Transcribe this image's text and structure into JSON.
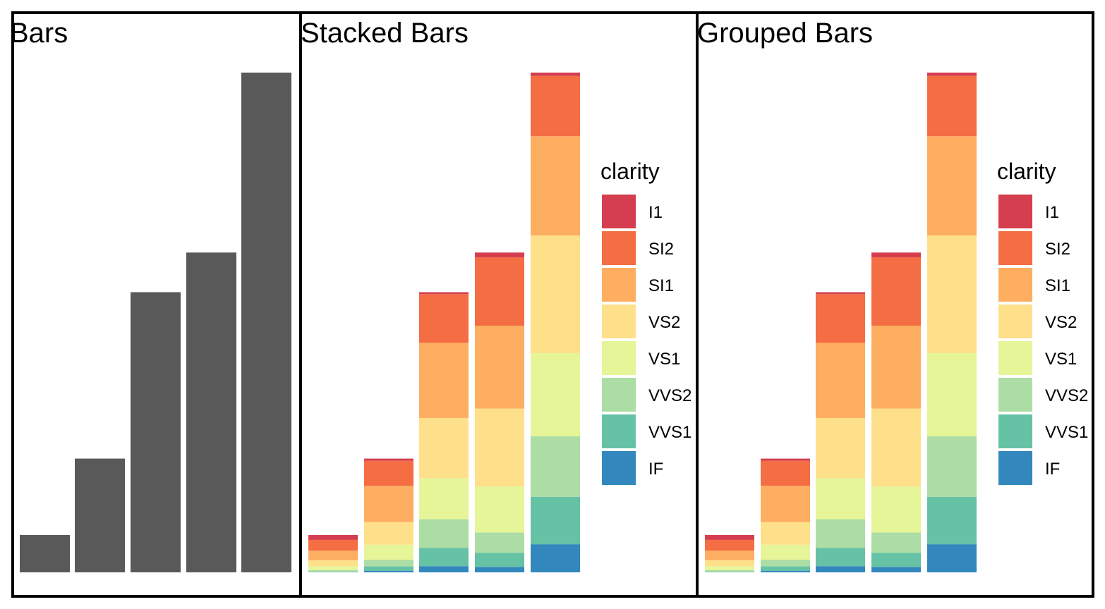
{
  "chart_data": [
    {
      "type": "bar",
      "title": "Bars",
      "xlabel": "",
      "ylabel": "",
      "categories": [
        "",
        "",
        "",
        "",
        ""
      ],
      "values": [
        1610,
        4906,
        12082,
        13791,
        21551
      ],
      "bar_color": "#595959",
      "ylim": [
        0,
        21551
      ],
      "grid": false
    },
    {
      "type": "bar",
      "stacked": true,
      "title": "Stacked Bars",
      "xlabel": "",
      "ylabel": "",
      "categories": [
        "",
        "",
        "",
        "",
        ""
      ],
      "legend": {
        "title": "clarity",
        "position": "right"
      },
      "series": [
        {
          "name": "I1",
          "color": "#d53e4f",
          "values": [
            210,
            96,
            84,
            205,
            146
          ]
        },
        {
          "name": "SI2",
          "color": "#f46d43",
          "values": [
            466,
            1081,
            2100,
            2949,
            2598
          ]
        },
        {
          "name": "SI1",
          "color": "#fdae61",
          "values": [
            408,
            1560,
            3240,
            3575,
            4282
          ]
        },
        {
          "name": "VS2",
          "color": "#fee08b",
          "values": [
            261,
            978,
            2591,
            3357,
            5071
          ]
        },
        {
          "name": "VS1",
          "color": "#e6f598",
          "values": [
            170,
            648,
            1775,
            1989,
            3589
          ]
        },
        {
          "name": "VVS2",
          "color": "#abdda4",
          "values": [
            69,
            286,
            1235,
            870,
            2606
          ]
        },
        {
          "name": "VVS1",
          "color": "#66c2a5",
          "values": [
            17,
            186,
            789,
            616,
            2047
          ]
        },
        {
          "name": "IF",
          "color": "#3288bd",
          "values": [
            9,
            71,
            268,
            230,
            1212
          ]
        }
      ],
      "ylim": [
        0,
        21551
      ],
      "grid": false
    },
    {
      "type": "bar",
      "stacked": true,
      "title": "Grouped Bars",
      "xlabel": "",
      "ylabel": "",
      "categories": [
        "",
        "",
        "",
        "",
        ""
      ],
      "legend": {
        "title": "clarity",
        "position": "right"
      },
      "series": [
        {
          "name": "I1",
          "color": "#d53e4f",
          "values": [
            210,
            96,
            84,
            205,
            146
          ]
        },
        {
          "name": "SI2",
          "color": "#f46d43",
          "values": [
            466,
            1081,
            2100,
            2949,
            2598
          ]
        },
        {
          "name": "SI1",
          "color": "#fdae61",
          "values": [
            408,
            1560,
            3240,
            3575,
            4282
          ]
        },
        {
          "name": "VS2",
          "color": "#fee08b",
          "values": [
            261,
            978,
            2591,
            3357,
            5071
          ]
        },
        {
          "name": "VS1",
          "color": "#e6f598",
          "values": [
            170,
            648,
            1775,
            1989,
            3589
          ]
        },
        {
          "name": "VVS2",
          "color": "#abdda4",
          "values": [
            69,
            286,
            1235,
            870,
            2606
          ]
        },
        {
          "name": "VVS1",
          "color": "#66c2a5",
          "values": [
            17,
            186,
            789,
            616,
            2047
          ]
        },
        {
          "name": "IF",
          "color": "#3288bd",
          "values": [
            9,
            71,
            268,
            230,
            1212
          ]
        }
      ],
      "ylim": [
        0,
        21551
      ],
      "grid": false
    }
  ]
}
